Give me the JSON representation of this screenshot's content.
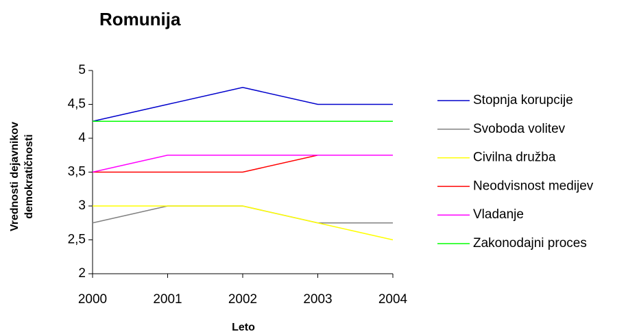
{
  "chart_data": {
    "type": "line",
    "title": "Romunija",
    "xlabel": "Leto",
    "ylabel": [
      "Vrednosti dejavnikov",
      "demokratičnosti"
    ],
    "x": [
      2000,
      2001,
      2002,
      2003,
      2004
    ],
    "xlim": [
      2000,
      2004
    ],
    "xticks": [
      2000,
      2001,
      2002,
      2003,
      2004
    ],
    "ylim": [
      2,
      5
    ],
    "yticks": [
      2,
      {
        "value": 2.5,
        "label": "2,5"
      },
      3,
      {
        "value": 3.5,
        "label": "3,5"
      },
      4,
      {
        "value": 4.5,
        "label": "4,5"
      },
      5
    ],
    "grid": false,
    "legend": "right",
    "series": [
      {
        "name": "Stopnja korupcije",
        "color": "#0000cc",
        "values": [
          4.25,
          4.5,
          4.75,
          4.5,
          4.5
        ]
      },
      {
        "name": "Svoboda volitev",
        "color": "#808080",
        "values": [
          2.75,
          3,
          3,
          2.75,
          2.75
        ]
      },
      {
        "name": "Civilna družba",
        "color": "#ffff00",
        "values": [
          3,
          3,
          3,
          2.75,
          2.5
        ]
      },
      {
        "name": "Neodvisnost medijev",
        "color": "#ff0000",
        "values": [
          3.5,
          3.5,
          3.5,
          3.75,
          3.75
        ]
      },
      {
        "name": "Vladanje",
        "color": "#ff00ff",
        "values": [
          3.5,
          3.75,
          3.75,
          3.75,
          3.75
        ]
      },
      {
        "name": "Zakonodajni proces",
        "color": "#00ff00",
        "values": [
          4.25,
          4.25,
          4.25,
          4.25,
          4.25
        ]
      }
    ]
  }
}
